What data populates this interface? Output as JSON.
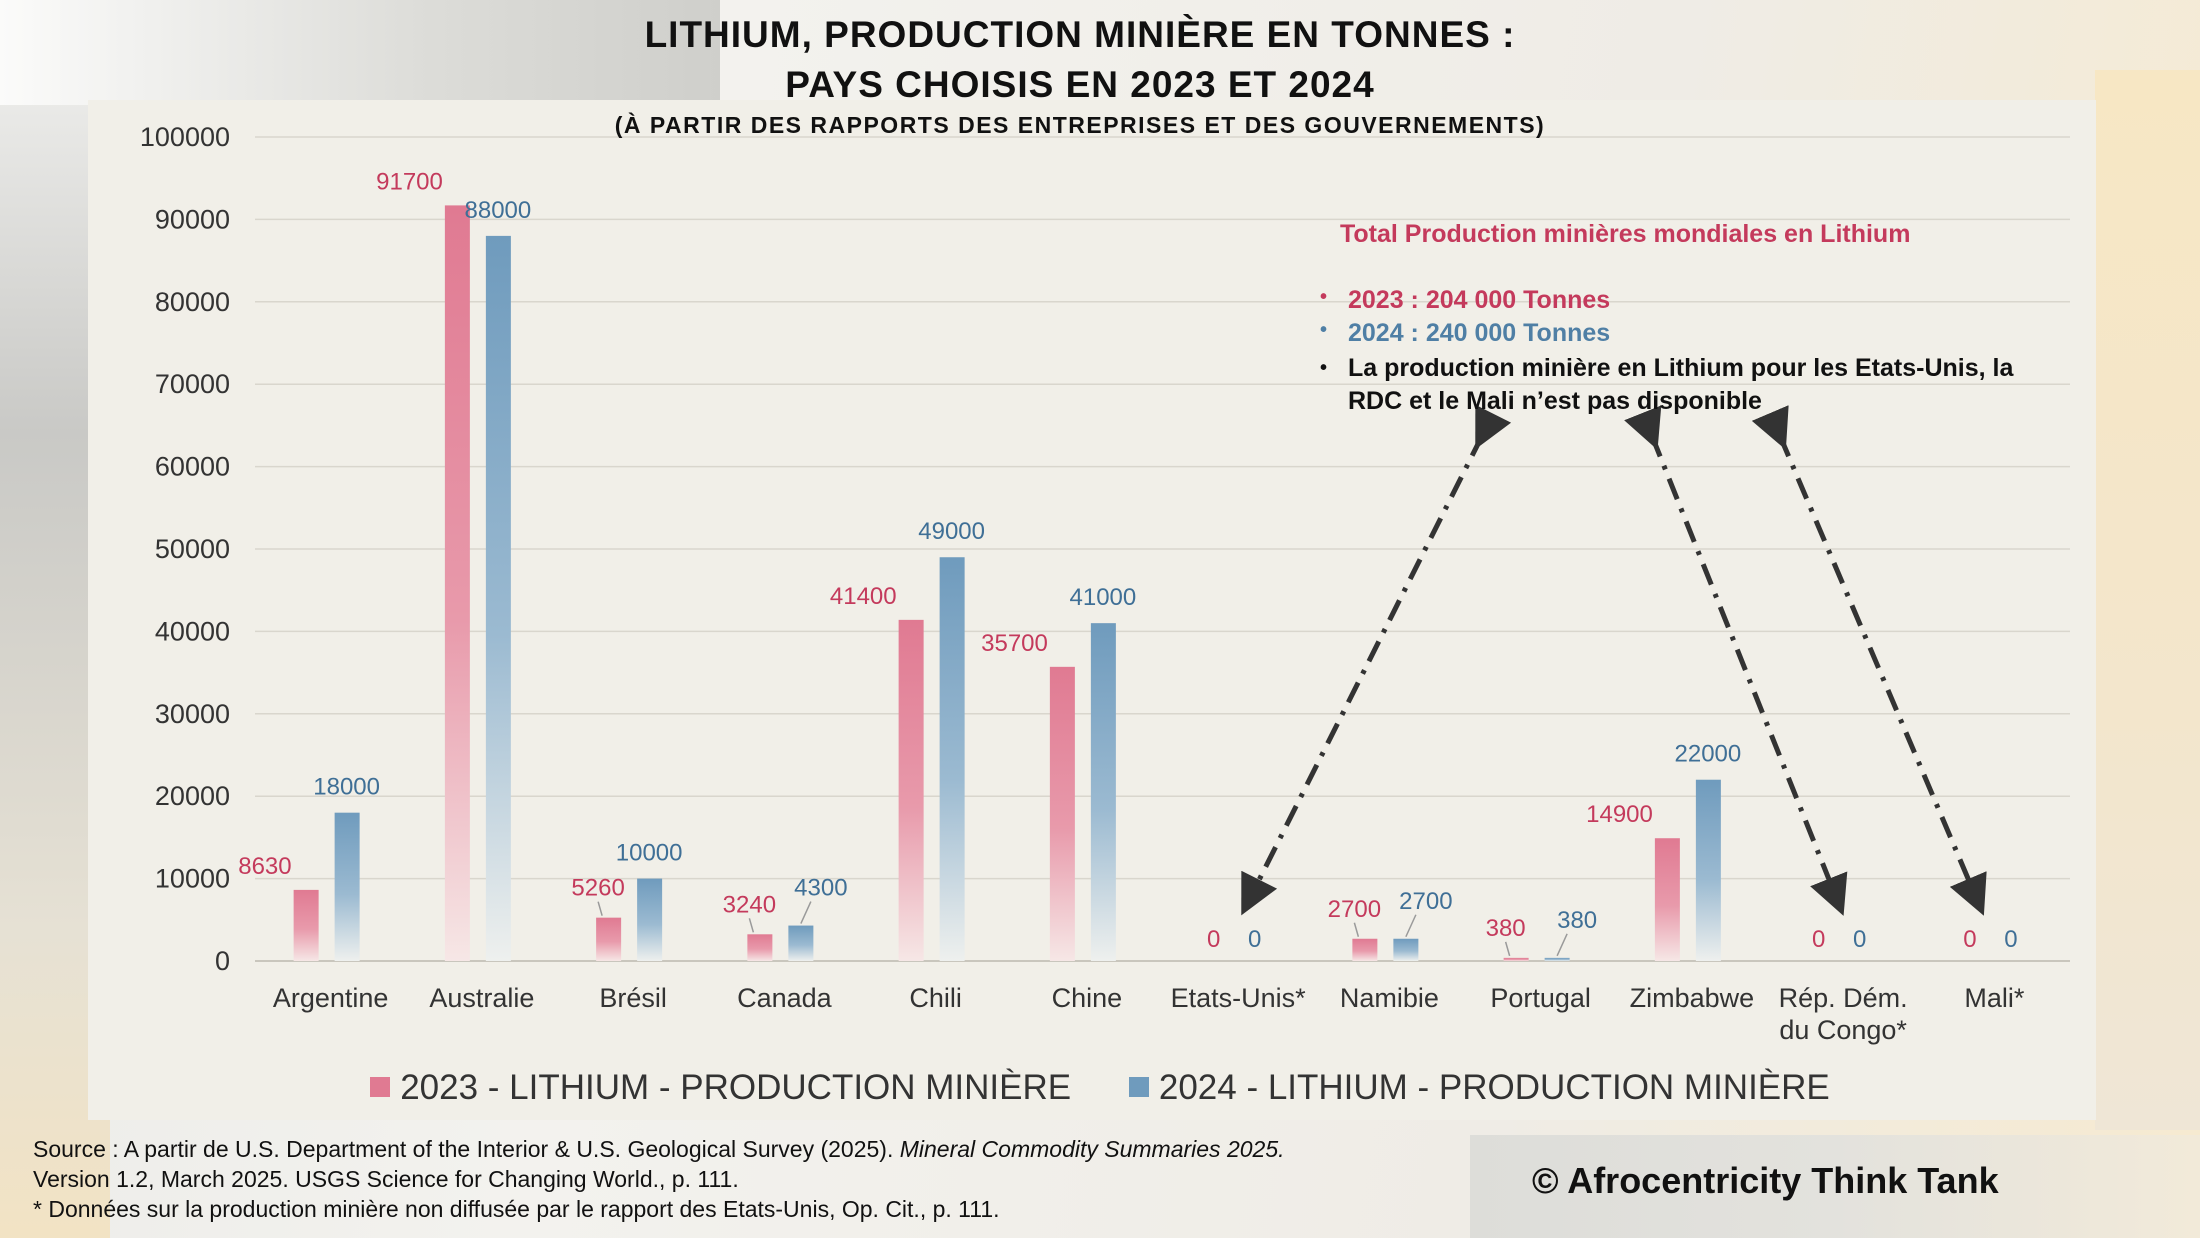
{
  "title_line1": "LITHIUM, PRODUCTION MINIÈRE EN TONNES :",
  "title_line2": "PAYS CHOISIS EN 2023 ET 2024",
  "subtitle": "(À PARTIR DES RAPPORTS DES ENTREPRISES ET DES GOUVERNEMENTS)",
  "colors": {
    "series_2023": "#e07a92",
    "series_2024": "#6f9bbd",
    "label_2023": "#c43a5c",
    "label_2024": "#3f6f96"
  },
  "chart_data": {
    "type": "bar",
    "categories": [
      "Argentine",
      "Australie",
      "Brésil",
      "Canada",
      "Chili",
      "Chine",
      "Etats-Unis*",
      "Namibie",
      "Portugal",
      "Zimbabwe",
      "Rép. Dém. du Congo*",
      "Mali*"
    ],
    "series": [
      {
        "name": "2023 - LITHIUM - PRODUCTION MINIÈRE",
        "values": [
          8630,
          91700,
          5260,
          3240,
          41400,
          35700,
          0,
          2700,
          380,
          14900,
          0,
          0
        ]
      },
      {
        "name": "2024 - LITHIUM - PRODUCTION MINIÈRE",
        "values": [
          18000,
          88000,
          10000,
          4300,
          49000,
          41000,
          0,
          2700,
          380,
          22000,
          0,
          0
        ]
      }
    ],
    "ylim": [
      0,
      100000
    ],
    "yticks": [
      0,
      10000,
      20000,
      30000,
      40000,
      50000,
      60000,
      70000,
      80000,
      90000,
      100000
    ],
    "grid": true,
    "legend_position": "bottom"
  },
  "annotation": {
    "title": "Total Production minières mondiales en Lithium",
    "bullet_2023": "2023 : 204 000 Tonnes",
    "bullet_2024": "2024 : 240 000 Tonnes",
    "bullet_note": "La production minière en Lithium pour les Etats-Unis, la RDC et le Mali n’est pas disponible",
    "bullet_symbol": "•"
  },
  "source": {
    "line1_a": "Source : A partir de U.S. Department of the Interior &  U.S. Geological Survey (2025). ",
    "line1_b": "Mineral Commodity Summaries 2025.",
    "line2": "Version 1.2, March 2025. USGS Science for Changing World., p. 111.",
    "line3": "* Données sur la production minière non diffusée par le rapport des Etats-Unis, Op. Cit., p. 111."
  },
  "copyright": "© Afrocentricity Think Tank"
}
